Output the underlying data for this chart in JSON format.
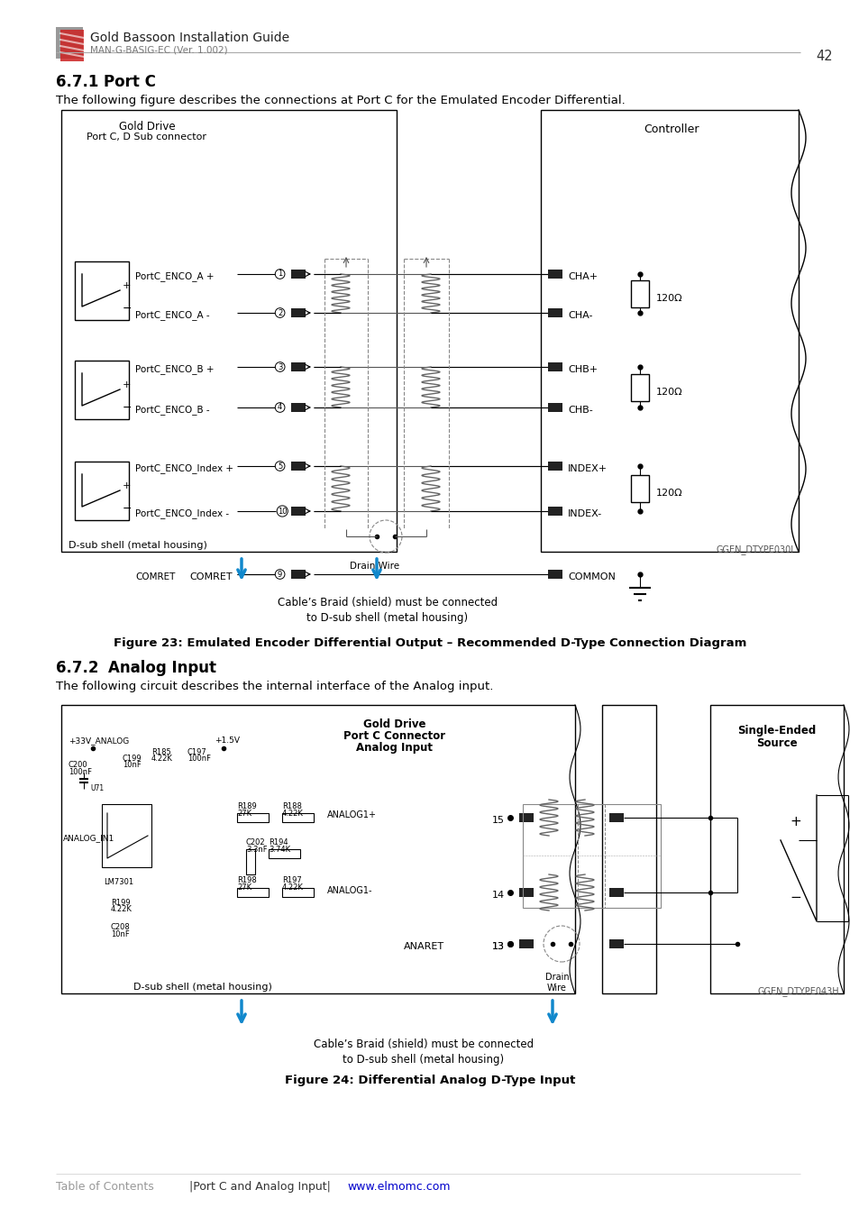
{
  "page_number": "42",
  "header_title": "Gold Bassoon Installation Guide",
  "header_subtitle": "MAN-G-BASIG-EC (Ver. 1.002)",
  "section_title_1": "6.7.1",
  "section_title_1b": "Port C",
  "section_desc_1": "The following figure describes the connections at Port C for the Emulated Encoder Differential.",
  "figure_caption_1": "Figure 23: Emulated Encoder Differential Output – Recommended D-Type Connection Diagram",
  "section_title_2": "6.7.2",
  "section_title_2b": "Analog Input",
  "section_desc_2": "The following circuit describes the internal interface of the Analog input.",
  "figure_caption_2": "Figure 24: Differential Analog D-Type Input",
  "footer_toc": "Table of Contents",
  "footer_sep": "|Port C and Analog Input|",
  "footer_url": "www.elmomc.com",
  "bg_color": "#ffffff",
  "diagram1_id": "GGEN_DTYPE030I",
  "diagram2_id": "GGEN_DTYPE043H",
  "cable_braid1": "Cable’s Braid (shield) must be connected\nto D-sub shell (metal housing)",
  "cable_braid2": "Cable’s Braid (shield) must be connected\nto D-sub shell (metal housing)"
}
